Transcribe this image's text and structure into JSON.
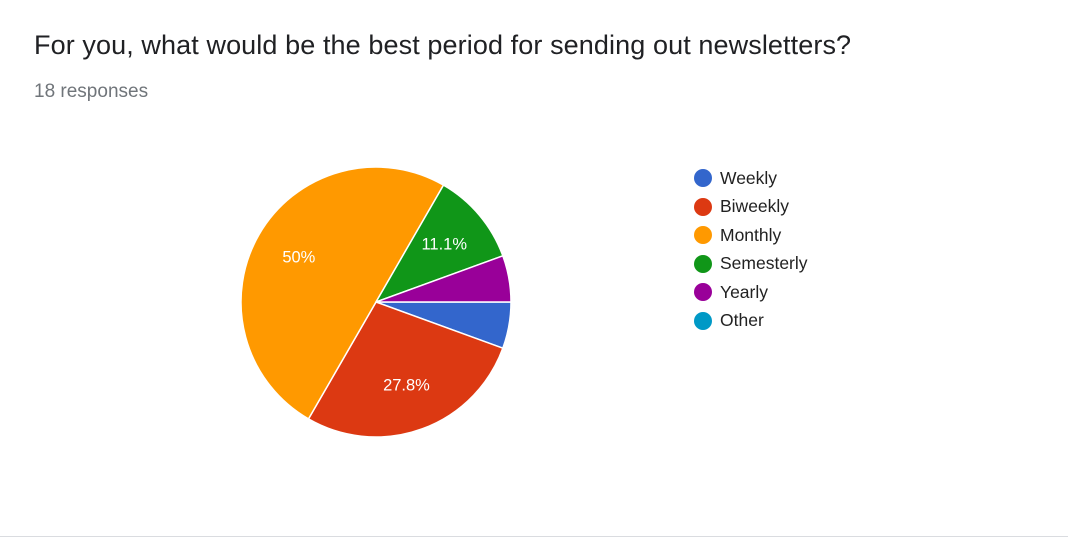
{
  "question": {
    "title": "For you, what would be the best period for sending out newsletters?",
    "responses": "18 responses"
  },
  "chart_data": {
    "type": "pie",
    "categories": [
      "Weekly",
      "Biweekly",
      "Monthly",
      "Semesterly",
      "Yearly",
      "Other"
    ],
    "values": [
      1,
      5,
      9,
      2,
      1,
      0
    ],
    "data_labels": [
      "",
      "27.8%",
      "50%",
      "11.1%",
      "",
      ""
    ],
    "colors": [
      "#3366cc",
      "#dc3912",
      "#ff9900",
      "#109618",
      "#990099",
      "#0099c6"
    ],
    "legend_position": "right"
  }
}
